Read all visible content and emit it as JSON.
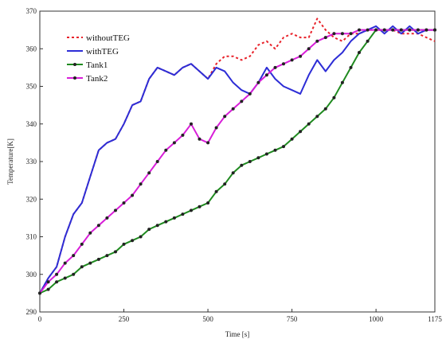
{
  "chart_data": {
    "type": "line",
    "xlabel": "Time [s]",
    "ylabel": "Temperature[K]",
    "xlim": [
      0,
      1175
    ],
    "ylim": [
      290,
      370
    ],
    "xticks": [
      0,
      250,
      500,
      750,
      1000,
      1175
    ],
    "yticks": [
      290,
      300,
      310,
      320,
      330,
      340,
      350,
      360,
      370
    ],
    "xtick_labels": [
      "0",
      "250",
      "500",
      "750",
      "1000",
      "1175"
    ],
    "ytick_labels": [
      "290",
      "300",
      "310",
      "320",
      "330",
      "340",
      "350",
      "360",
      "370"
    ],
    "legend_position": "top-left",
    "series": [
      {
        "name": "withoutTEG",
        "color": "#e8222a",
        "style": "dotted",
        "marker": "none",
        "x": [
          0,
          25,
          50,
          75,
          100,
          125,
          150,
          175,
          200,
          225,
          250,
          275,
          300,
          325,
          350,
          375,
          400,
          425,
          450,
          475,
          500,
          525,
          550,
          575,
          600,
          625,
          650,
          675,
          700,
          725,
          750,
          775,
          800,
          825,
          850,
          875,
          900,
          925,
          950,
          975,
          1000,
          1025,
          1050,
          1075,
          1100,
          1125,
          1150,
          1175
        ],
        "y": [
          295,
          299,
          302,
          310,
          316,
          319,
          326,
          333,
          335,
          336,
          340,
          345,
          346,
          352,
          355,
          354,
          353,
          355,
          356,
          354,
          352,
          356,
          358,
          358,
          357,
          358,
          361,
          362,
          360,
          363,
          364,
          363,
          363,
          368,
          365,
          363,
          362,
          364,
          364,
          365,
          365,
          365,
          365,
          364,
          364,
          364,
          363,
          362
        ]
      },
      {
        "name": "withTEG",
        "color": "#2d2dd6",
        "style": "solid",
        "marker": "none",
        "x": [
          0,
          25,
          50,
          75,
          100,
          125,
          150,
          175,
          200,
          225,
          250,
          275,
          300,
          325,
          350,
          375,
          400,
          425,
          450,
          475,
          500,
          525,
          550,
          575,
          600,
          625,
          650,
          675,
          700,
          725,
          750,
          775,
          800,
          825,
          850,
          875,
          900,
          925,
          950,
          975,
          1000,
          1025,
          1050,
          1075,
          1100,
          1125,
          1150,
          1175
        ],
        "y": [
          295,
          299,
          302,
          310,
          316,
          319,
          326,
          333,
          335,
          336,
          340,
          345,
          346,
          352,
          355,
          354,
          353,
          355,
          356,
          354,
          352,
          355,
          354,
          351,
          349,
          348,
          351,
          355,
          352,
          350,
          349,
          348,
          353,
          357,
          354,
          357,
          359,
          362,
          364,
          365,
          366,
          364,
          366,
          364,
          366,
          364,
          365,
          365
        ]
      },
      {
        "name": "Tank1",
        "color": "#1f8a1f",
        "style": "solid",
        "marker": "dot",
        "x": [
          0,
          25,
          50,
          75,
          100,
          125,
          150,
          175,
          200,
          225,
          250,
          275,
          300,
          325,
          350,
          375,
          400,
          425,
          450,
          475,
          500,
          525,
          550,
          575,
          600,
          625,
          650,
          675,
          700,
          725,
          750,
          775,
          800,
          825,
          850,
          875,
          900,
          925,
          950,
          975,
          1000,
          1025,
          1050,
          1075,
          1100,
          1125,
          1150,
          1175
        ],
        "y": [
          295,
          296,
          298,
          299,
          300,
          302,
          303,
          304,
          305,
          306,
          308,
          309,
          310,
          312,
          313,
          314,
          315,
          316,
          317,
          318,
          319,
          322,
          324,
          327,
          329,
          330,
          331,
          332,
          333,
          334,
          336,
          338,
          340,
          342,
          344,
          347,
          351,
          355,
          359,
          362,
          365,
          365,
          365,
          365,
          365,
          365,
          365,
          365
        ]
      },
      {
        "name": "Tank2",
        "color": "#d81ed8",
        "style": "solid",
        "marker": "dot",
        "x": [
          0,
          25,
          50,
          75,
          100,
          125,
          150,
          175,
          200,
          225,
          250,
          275,
          300,
          325,
          350,
          375,
          400,
          425,
          450,
          475,
          500,
          525,
          550,
          575,
          600,
          625,
          650,
          675,
          700,
          725,
          750,
          775,
          800,
          825,
          850,
          875,
          900,
          925,
          950,
          975,
          1000,
          1025,
          1050,
          1075,
          1100,
          1125,
          1150,
          1175
        ],
        "y": [
          295,
          298,
          300,
          303,
          305,
          308,
          311,
          313,
          315,
          317,
          319,
          321,
          324,
          327,
          330,
          333,
          335,
          337,
          340,
          336,
          335,
          339,
          342,
          344,
          346,
          348,
          351,
          353,
          355,
          356,
          357,
          358,
          360,
          362,
          363,
          364,
          364,
          364,
          365,
          365,
          365,
          365,
          365,
          365,
          365,
          365,
          365,
          365
        ]
      }
    ]
  }
}
